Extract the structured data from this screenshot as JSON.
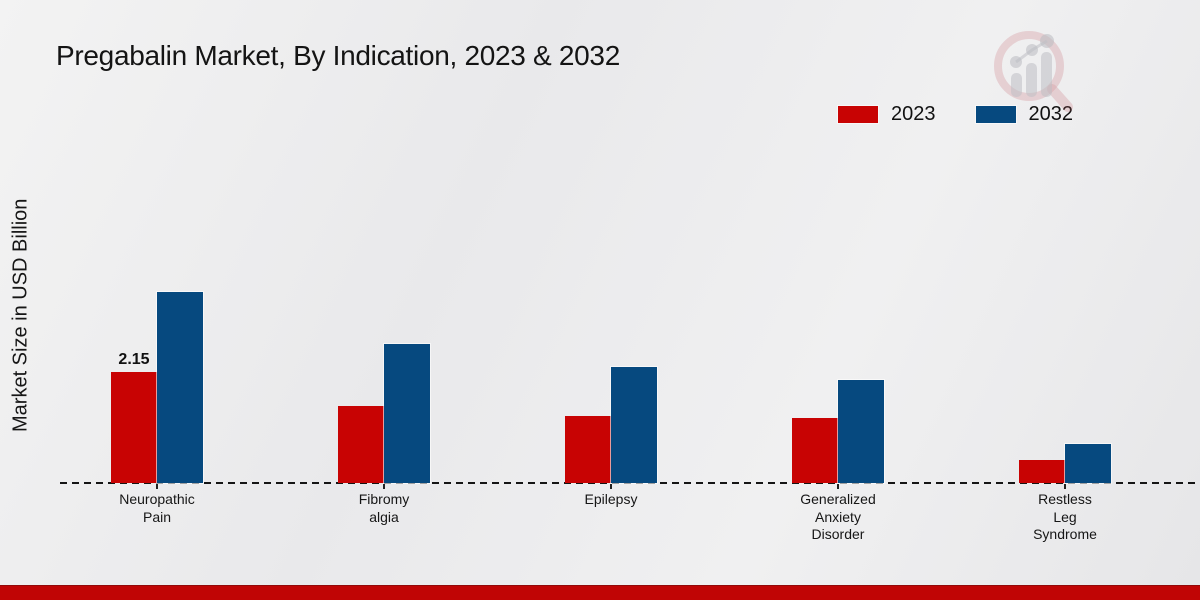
{
  "title": "Pregabalin Market, By Indication, 2023 & 2032",
  "y_axis_label": "Market Size in USD Billion",
  "legend": [
    {
      "label": "2023",
      "color": "#c80303"
    },
    {
      "label": "2032",
      "color": "#06497f"
    }
  ],
  "colors": {
    "series_2023": "#c80303",
    "series_2032": "#06497f",
    "footer_strip": "#c00505",
    "text": "#161616"
  },
  "watermark_icon": "magnifier-bar-chart-logo",
  "chart_data": {
    "type": "bar",
    "title": "Pregabalin Market, By Indication, 2023 & 2032",
    "ylabel": "Market Size in USD Billion",
    "xlabel": "",
    "categories": [
      "Neuropathic Pain",
      "Fibromyalgia",
      "Epilepsy",
      "Generalized Anxiety Disorder",
      "Restless Leg Syndrome"
    ],
    "category_display_lines": [
      [
        "Neuropathic",
        "Pain"
      ],
      [
        "Fibromy",
        "algia"
      ],
      [
        "Epilepsy"
      ],
      [
        "Generalized",
        "Anxiety",
        "Disorder"
      ],
      [
        "Restless",
        "Leg",
        "Syndrome"
      ]
    ],
    "series": [
      {
        "name": "2023",
        "color": "#c80303",
        "values": [
          2.15,
          1.5,
          1.3,
          1.25,
          0.45
        ]
      },
      {
        "name": "2032",
        "color": "#06497f",
        "values": [
          3.7,
          2.7,
          2.25,
          2.0,
          0.76
        ]
      }
    ],
    "value_labels": [
      {
        "series_index": 0,
        "category_index": 0,
        "text": "2.15"
      }
    ],
    "ylim": [
      0,
      4
    ],
    "grid": false,
    "baseline_style": "dashed",
    "legend_position": "top-right"
  }
}
